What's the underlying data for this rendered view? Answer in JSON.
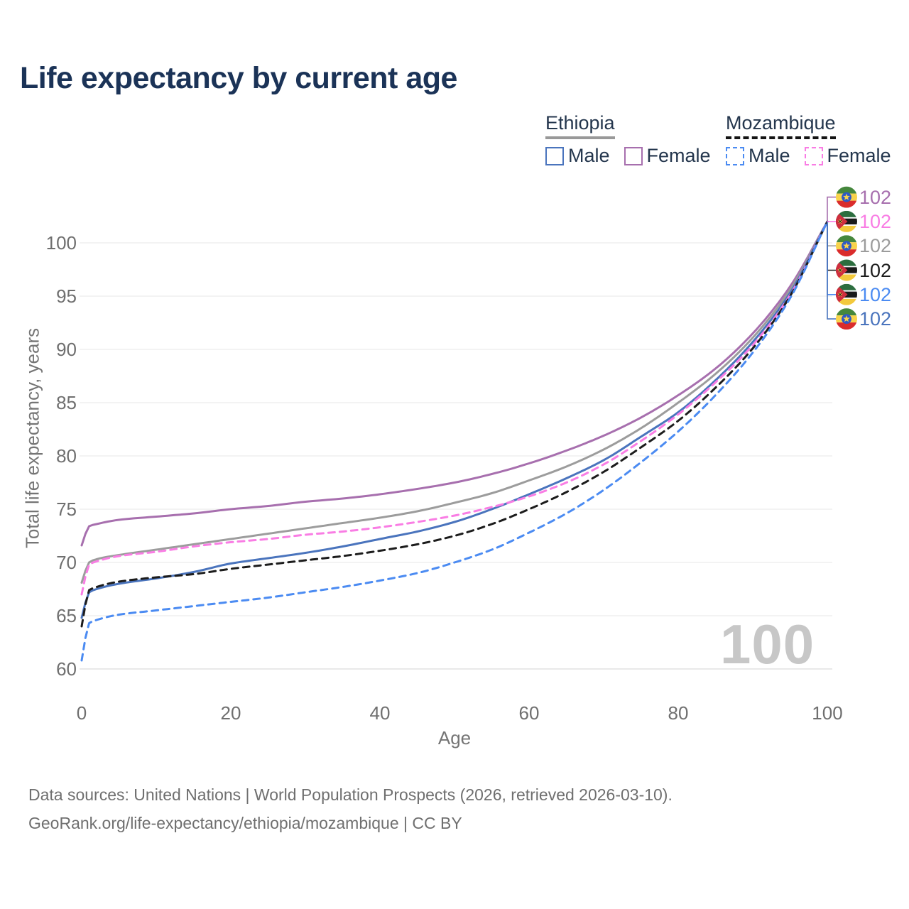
{
  "title": "Life expectancy by current age",
  "watermark": "100",
  "legend": {
    "groups": [
      {
        "name": "Ethiopia",
        "line_style": "solid",
        "line_color": "#999999",
        "items": [
          {
            "label": "Male",
            "color": "#4a74bd",
            "box_style": "solid"
          },
          {
            "label": "Female",
            "color": "#a76fae",
            "box_style": "solid"
          }
        ]
      },
      {
        "name": "Mozambique",
        "line_style": "dashed",
        "line_color": "#141414",
        "items": [
          {
            "label": "Male",
            "color": "#4b8bf2",
            "box_style": "dashed"
          },
          {
            "label": "Female",
            "color": "#f97de4",
            "box_style": "dashed"
          }
        ]
      }
    ]
  },
  "chart_data": {
    "type": "line",
    "title": "Life expectancy by current age",
    "xlabel": "Age",
    "ylabel": "Total life expectancy, years",
    "x_ticks": [
      0,
      20,
      40,
      60,
      80,
      100
    ],
    "y_ticks": [
      60,
      65,
      70,
      75,
      80,
      85,
      90,
      95,
      100
    ],
    "xlim": [
      0,
      100
    ],
    "ylim": [
      60,
      102
    ],
    "grid": "horizontal",
    "legend_position": "top-right",
    "ages": [
      0,
      1,
      2,
      5,
      10,
      15,
      20,
      25,
      30,
      35,
      40,
      45,
      50,
      55,
      60,
      65,
      70,
      75,
      80,
      85,
      90,
      95,
      100
    ],
    "series": [
      {
        "name": "Ethiopia Female",
        "country": "Ethiopia",
        "sex": "Female",
        "color": "#a76fae",
        "dash": "solid",
        "end_row": 0,
        "end_label": "102",
        "flag": "ethiopia",
        "values": [
          71.6,
          73.4,
          73.6,
          74.0,
          74.3,
          74.6,
          75.0,
          75.3,
          75.7,
          76.0,
          76.4,
          76.9,
          77.5,
          78.3,
          79.3,
          80.5,
          81.9,
          83.6,
          85.7,
          88.2,
          91.5,
          95.9,
          102
        ]
      },
      {
        "name": "Ethiopia Both sexes",
        "country": "Ethiopia",
        "sex": "Both",
        "color": "#9c9c9c",
        "dash": "solid",
        "end_row": 2,
        "end_label": "102",
        "flag": "ethiopia",
        "values": [
          68.1,
          70.0,
          70.3,
          70.7,
          71.2,
          71.7,
          72.2,
          72.7,
          73.2,
          73.7,
          74.2,
          74.8,
          75.6,
          76.5,
          77.7,
          79.0,
          80.6,
          82.6,
          85.0,
          87.7,
          91.1,
          95.6,
          102
        ]
      },
      {
        "name": "Ethiopia Male",
        "country": "Ethiopia",
        "sex": "Male",
        "color": "#4a74bd",
        "dash": "solid",
        "end_row": 5,
        "end_label": "102",
        "flag": "ethiopia",
        "values": [
          64.8,
          67.2,
          67.5,
          68.0,
          68.5,
          69.1,
          69.9,
          70.4,
          70.9,
          71.5,
          72.2,
          72.9,
          73.8,
          75.0,
          76.4,
          77.9,
          79.6,
          81.8,
          84.1,
          87.1,
          90.7,
          95.3,
          102
        ]
      },
      {
        "name": "Mozambique Female",
        "country": "Mozambique",
        "sex": "Female",
        "color": "#f97de4",
        "dash": "dashed",
        "end_row": 1,
        "end_label": "102",
        "flag": "mozambique",
        "values": [
          67.0,
          69.8,
          70.1,
          70.6,
          71.0,
          71.5,
          71.9,
          72.2,
          72.6,
          72.9,
          73.3,
          73.8,
          74.4,
          75.2,
          76.2,
          77.5,
          79.2,
          81.4,
          83.9,
          86.9,
          90.4,
          95.1,
          102
        ]
      },
      {
        "name": "Mozambique Both sexes",
        "country": "Mozambique",
        "sex": "Both",
        "color": "#1c1c1c",
        "dash": "dashed",
        "end_row": 3,
        "end_label": "102",
        "flag": "mozambique",
        "values": [
          64.0,
          67.4,
          67.7,
          68.2,
          68.6,
          68.9,
          69.4,
          69.8,
          70.2,
          70.6,
          71.1,
          71.7,
          72.5,
          73.6,
          75.0,
          76.6,
          78.5,
          80.8,
          83.3,
          86.4,
          90.1,
          95.0,
          102
        ]
      },
      {
        "name": "Mozambique Male",
        "country": "Mozambique",
        "sex": "Male",
        "color": "#4b8bf2",
        "dash": "dashed",
        "end_row": 4,
        "end_label": "102",
        "flag": "mozambique",
        "values": [
          60.8,
          64.3,
          64.6,
          65.1,
          65.5,
          65.9,
          66.3,
          66.7,
          67.2,
          67.7,
          68.3,
          69.0,
          70.0,
          71.2,
          72.8,
          74.6,
          76.8,
          79.4,
          82.3,
          85.7,
          89.7,
          94.8,
          102
        ]
      }
    ]
  },
  "footer": {
    "line1": "Data sources: United Nations | World Population Prospects (2026, retrieved 2026-03-10).",
    "line2": "GeoRank.org/life-expectancy/ethiopia/mozambique | CC BY"
  }
}
